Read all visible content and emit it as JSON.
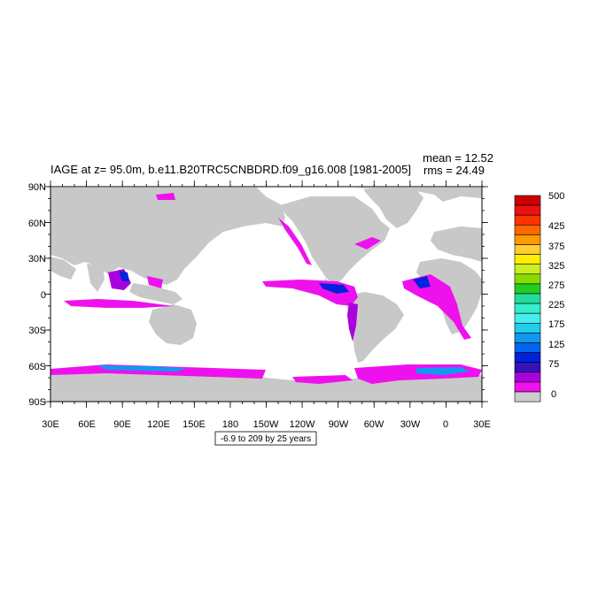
{
  "title": "IAGE at z=  95.0m, b.e11.B20TRC5CNBDRD.f09_g16.008 [1981-2005]",
  "stats": {
    "mean": "mean = 12.52",
    "rms": "rms = 24.49"
  },
  "lat_ticks": [
    "90N",
    "60N",
    "30N",
    "0",
    "30S",
    "60S",
    "90S"
  ],
  "lon_ticks": [
    "30E",
    "60E",
    "90E",
    "120E",
    "150E",
    "180",
    "150W",
    "120W",
    "90W",
    "60W",
    "30W",
    "0",
    "30E"
  ],
  "contour_info": "-6.9 to 209 by 25 years",
  "colorbar": {
    "labels": [
      "500",
      "425",
      "375",
      "325",
      "275",
      "225",
      "175",
      "125",
      "75",
      "0"
    ],
    "colors": [
      "#cc0000",
      "#ee1111",
      "#ff3300",
      "#ff6600",
      "#ff9900",
      "#ffcc33",
      "#ffee00",
      "#ccee22",
      "#88dd00",
      "#22cc22",
      "#22dd99",
      "#33eecc",
      "#44eeee",
      "#22ccee",
      "#1199ee",
      "#0066ee",
      "#0022dd",
      "#3311bb",
      "#aa00dd",
      "#ee11ee",
      "#cccccc"
    ]
  },
  "colors": {
    "land": "#c8c8c8",
    "ocean": "#ffffff"
  }
}
